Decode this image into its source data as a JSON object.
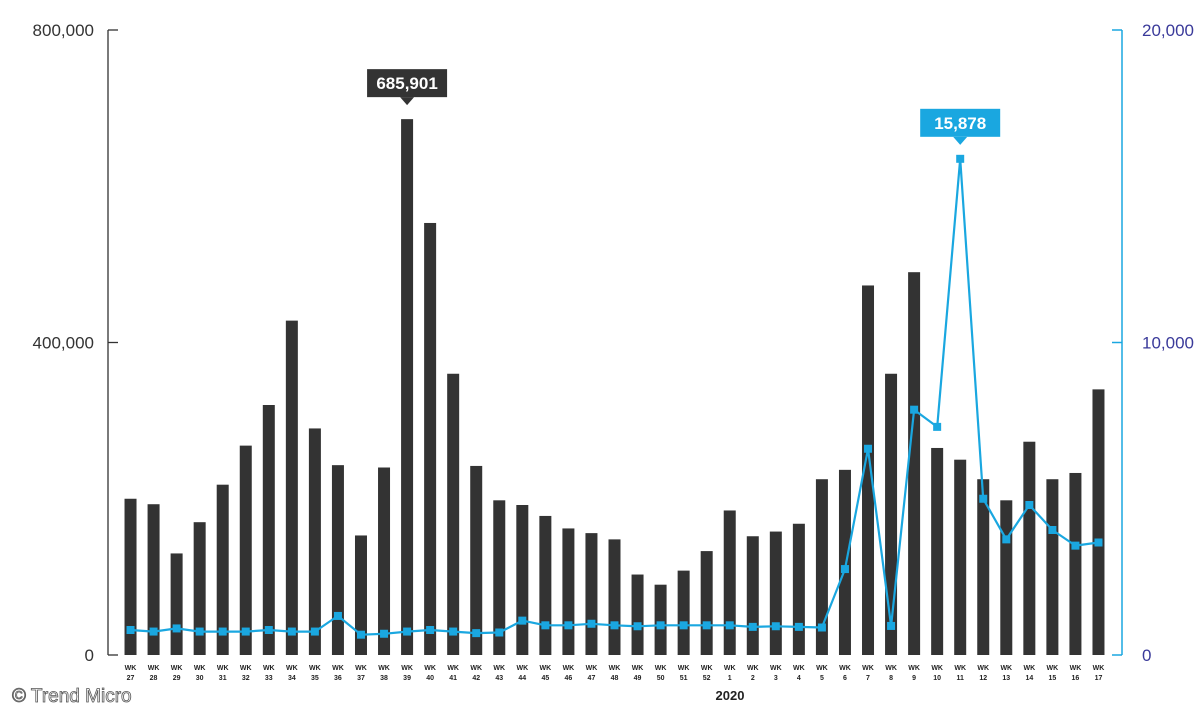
{
  "copyright": "© Trend Micro",
  "chart_data": {
    "type": "bar+line",
    "year_label": "2020",
    "categories": [
      [
        "WK",
        "27"
      ],
      [
        "WK",
        "28"
      ],
      [
        "WK",
        "29"
      ],
      [
        "WK",
        "30"
      ],
      [
        "WK",
        "31"
      ],
      [
        "WK",
        "32"
      ],
      [
        "WK",
        "33"
      ],
      [
        "WK",
        "34"
      ],
      [
        "WK",
        "35"
      ],
      [
        "WK",
        "36"
      ],
      [
        "WK",
        "37"
      ],
      [
        "WK",
        "38"
      ],
      [
        "WK",
        "39"
      ],
      [
        "WK",
        "40"
      ],
      [
        "WK",
        "41"
      ],
      [
        "WK",
        "42"
      ],
      [
        "WK",
        "43"
      ],
      [
        "WK",
        "44"
      ],
      [
        "WK",
        "45"
      ],
      [
        "WK",
        "46"
      ],
      [
        "WK",
        "47"
      ],
      [
        "WK",
        "48"
      ],
      [
        "WK",
        "49"
      ],
      [
        "WK",
        "50"
      ],
      [
        "WK",
        "51"
      ],
      [
        "WK",
        "52"
      ],
      [
        "WK",
        "1"
      ],
      [
        "WK",
        "2"
      ],
      [
        "WK",
        "3"
      ],
      [
        "WK",
        "4"
      ],
      [
        "WK",
        "5"
      ],
      [
        "WK",
        "6"
      ],
      [
        "WK",
        "7"
      ],
      [
        "WK",
        "8"
      ],
      [
        "WK",
        "9"
      ],
      [
        "WK",
        "10"
      ],
      [
        "WK",
        "11"
      ],
      [
        "WK",
        "12"
      ],
      [
        "WK",
        "13"
      ],
      [
        "WK",
        "14"
      ],
      [
        "WK",
        "15"
      ],
      [
        "WK",
        "16"
      ],
      [
        "WK",
        "17"
      ]
    ],
    "left_axis": {
      "ylim": [
        0,
        800000
      ],
      "ticks": [
        "0",
        "400,000",
        "800,000"
      ],
      "tick_values": [
        0,
        400000,
        800000
      ],
      "color": "#333333"
    },
    "right_axis": {
      "ylim": [
        0,
        20000
      ],
      "ticks": [
        "0",
        "10,000",
        "20,000"
      ],
      "tick_values": [
        0,
        10000,
        20000
      ],
      "color": "#3a3a9a",
      "line_color": "#1aa7e0"
    },
    "series": [
      {
        "kind": "bar",
        "axis": "left",
        "color": "#333333",
        "values": [
          200000,
          193000,
          130000,
          170000,
          218000,
          268000,
          320000,
          428000,
          290000,
          243000,
          153000,
          240000,
          685901,
          553000,
          360000,
          242000,
          198000,
          192000,
          178000,
          162000,
          156000,
          148000,
          103000,
          90000,
          108000,
          133000,
          185000,
          152000,
          158000,
          168000,
          225000,
          237000,
          473000,
          360000,
          490000,
          265000,
          250000,
          225000,
          198000,
          273000,
          225000,
          233000,
          340000
        ]
      },
      {
        "kind": "line",
        "axis": "right",
        "color": "#1aa7e0",
        "values": [
          800,
          750,
          850,
          750,
          750,
          750,
          800,
          750,
          750,
          1250,
          650,
          680,
          750,
          800,
          750,
          700,
          720,
          1100,
          950,
          950,
          1000,
          950,
          920,
          950,
          950,
          950,
          950,
          900,
          920,
          900,
          880,
          2750,
          6600,
          930,
          7850,
          7300,
          15878,
          5000,
          3700,
          4800,
          4000,
          3500,
          3600
        ]
      }
    ],
    "callouts": [
      {
        "label": "685,901",
        "series": 0,
        "index": 12,
        "bg": "#333333"
      },
      {
        "label": "15,878",
        "series": 1,
        "index": 36,
        "bg": "#1aa7e0"
      }
    ]
  }
}
